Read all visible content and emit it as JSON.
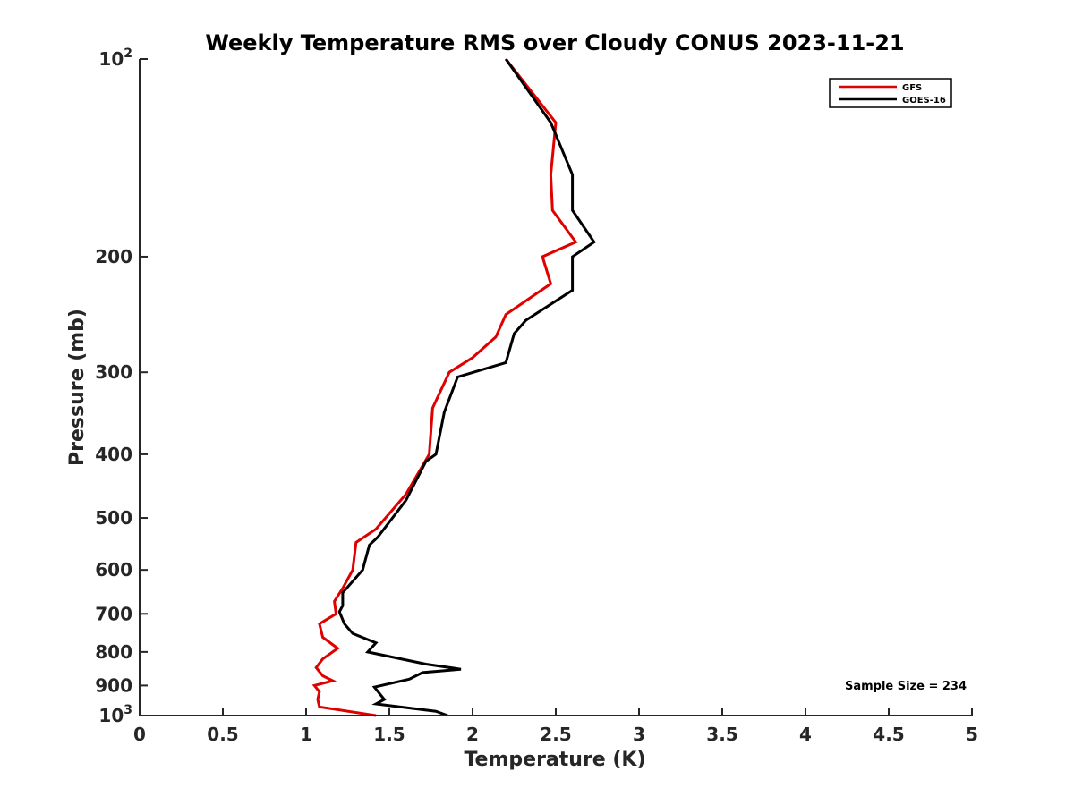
{
  "chart_data": {
    "type": "line",
    "title": "Weekly Temperature RMS over Cloudy CONUS 2023-11-21",
    "xlabel": "Temperature (K)",
    "ylabel": "Pressure (mb)",
    "xlim": [
      0,
      5
    ],
    "ylim": [
      100,
      1000
    ],
    "y_scale": "log",
    "y_reversed": true,
    "grid": false,
    "legend_position": "top-right",
    "x_ticks": [
      0,
      0.5,
      1,
      1.5,
      2,
      2.5,
      3,
      3.5,
      4,
      4.5,
      5
    ],
    "x_tick_labels": [
      "0",
      "0.5",
      "1",
      "1.5",
      "2",
      "2.5",
      "3",
      "3.5",
      "4",
      "4.5",
      "5"
    ],
    "y_ticks": [
      100,
      200,
      300,
      400,
      500,
      600,
      700,
      800,
      900,
      1000
    ],
    "y_tick_labels": [
      {
        "base": "10",
        "sup": "2"
      },
      {
        "base": "200",
        "sup": ""
      },
      {
        "base": "300",
        "sup": ""
      },
      {
        "base": "400",
        "sup": ""
      },
      {
        "base": "500",
        "sup": ""
      },
      {
        "base": "600",
        "sup": ""
      },
      {
        "base": "700",
        "sup": ""
      },
      {
        "base": "800",
        "sup": ""
      },
      {
        "base": "900",
        "sup": ""
      },
      {
        "base": "10",
        "sup": "3"
      }
    ],
    "annotation": "Sample Size = 234",
    "series": [
      {
        "name": "GFS",
        "color": "#e00000",
        "points": [
          [
            2.2,
            100
          ],
          [
            2.5,
            125
          ],
          [
            2.47,
            150
          ],
          [
            2.48,
            170
          ],
          [
            2.62,
            190
          ],
          [
            2.42,
            200
          ],
          [
            2.47,
            220
          ],
          [
            2.2,
            245
          ],
          [
            2.14,
            265
          ],
          [
            2.0,
            285
          ],
          [
            1.86,
            300
          ],
          [
            1.76,
            340
          ],
          [
            1.74,
            400
          ],
          [
            1.6,
            460
          ],
          [
            1.42,
            520
          ],
          [
            1.3,
            545
          ],
          [
            1.28,
            600
          ],
          [
            1.22,
            640
          ],
          [
            1.17,
            670
          ],
          [
            1.18,
            700
          ],
          [
            1.08,
            725
          ],
          [
            1.1,
            760
          ],
          [
            1.19,
            790
          ],
          [
            1.1,
            820
          ],
          [
            1.06,
            845
          ],
          [
            1.1,
            870
          ],
          [
            1.16,
            885
          ],
          [
            1.05,
            900
          ],
          [
            1.08,
            920
          ],
          [
            1.07,
            945
          ],
          [
            1.08,
            970
          ],
          [
            1.42,
            1000
          ]
        ]
      },
      {
        "name": "GOES-16",
        "color": "#000000",
        "points": [
          [
            2.2,
            100
          ],
          [
            2.47,
            125
          ],
          [
            2.6,
            150
          ],
          [
            2.6,
            170
          ],
          [
            2.73,
            190
          ],
          [
            2.6,
            200
          ],
          [
            2.6,
            225
          ],
          [
            2.32,
            250
          ],
          [
            2.25,
            262
          ],
          [
            2.2,
            290
          ],
          [
            1.91,
            305
          ],
          [
            1.83,
            345
          ],
          [
            1.78,
            400
          ],
          [
            1.72,
            410
          ],
          [
            1.6,
            470
          ],
          [
            1.43,
            535
          ],
          [
            1.38,
            550
          ],
          [
            1.34,
            600
          ],
          [
            1.22,
            650
          ],
          [
            1.22,
            680
          ],
          [
            1.2,
            695
          ],
          [
            1.23,
            725
          ],
          [
            1.28,
            750
          ],
          [
            1.42,
            775
          ],
          [
            1.37,
            800
          ],
          [
            1.72,
            835
          ],
          [
            1.93,
            850
          ],
          [
            1.7,
            860
          ],
          [
            1.62,
            880
          ],
          [
            1.41,
            905
          ],
          [
            1.47,
            945
          ],
          [
            1.42,
            960
          ],
          [
            1.78,
            985
          ],
          [
            1.85,
            1000
          ]
        ]
      }
    ]
  }
}
